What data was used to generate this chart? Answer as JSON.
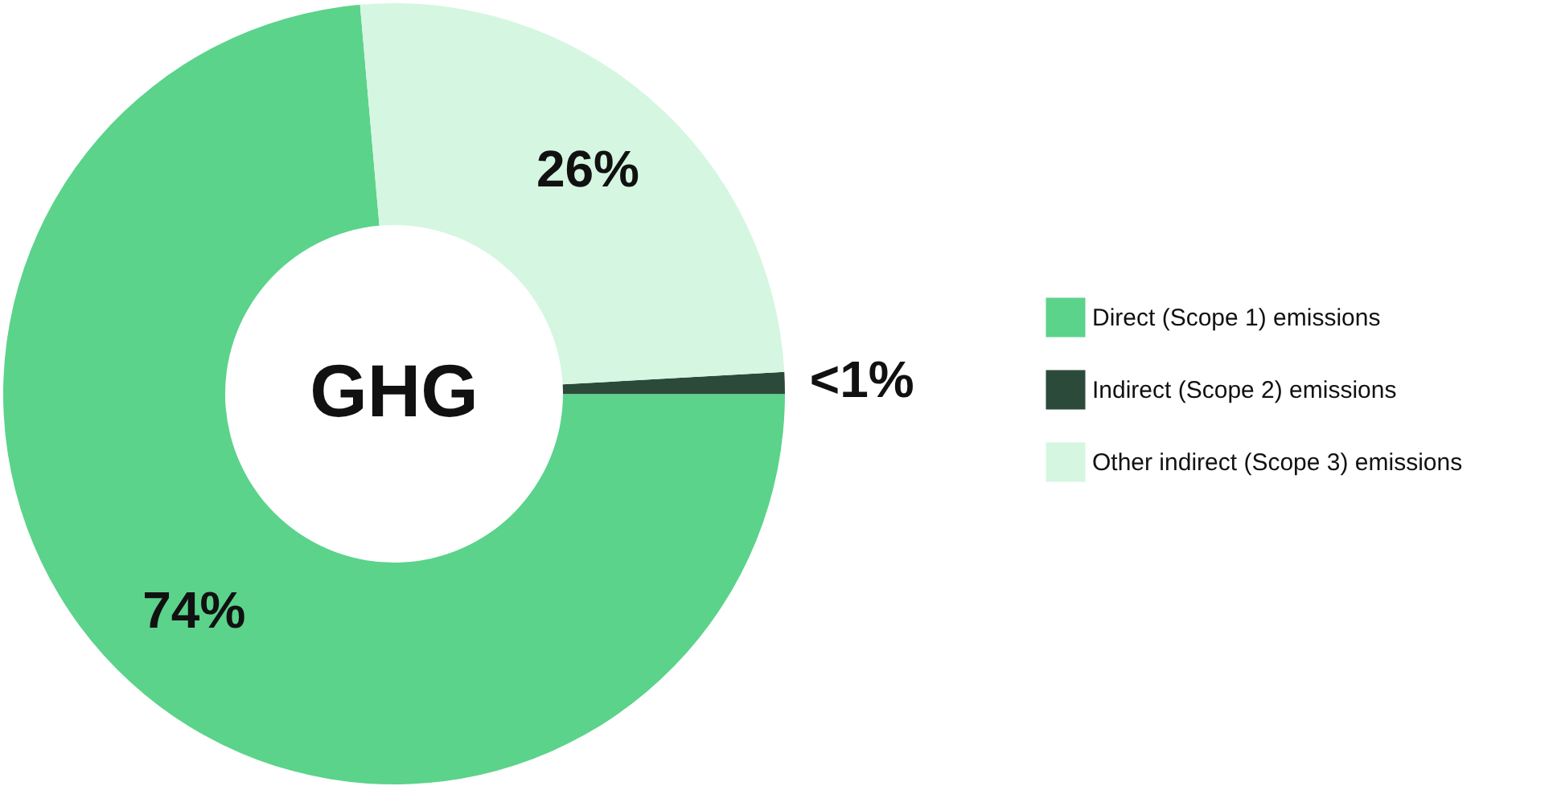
{
  "chart_data": {
    "type": "donut",
    "title": "GHG",
    "categories": [
      "Direct (Scope 1) emissions",
      "Indirect (Scope 2) emissions",
      "Other indirect (Scope 3) emissions"
    ],
    "values": [
      73.6,
      0.9,
      25.5
    ],
    "value_labels": [
      "74%",
      "<1%",
      "26%"
    ],
    "colors": [
      "#5bd38b",
      "#2c4a3a",
      "#d5f6e1"
    ],
    "legend": "right"
  }
}
